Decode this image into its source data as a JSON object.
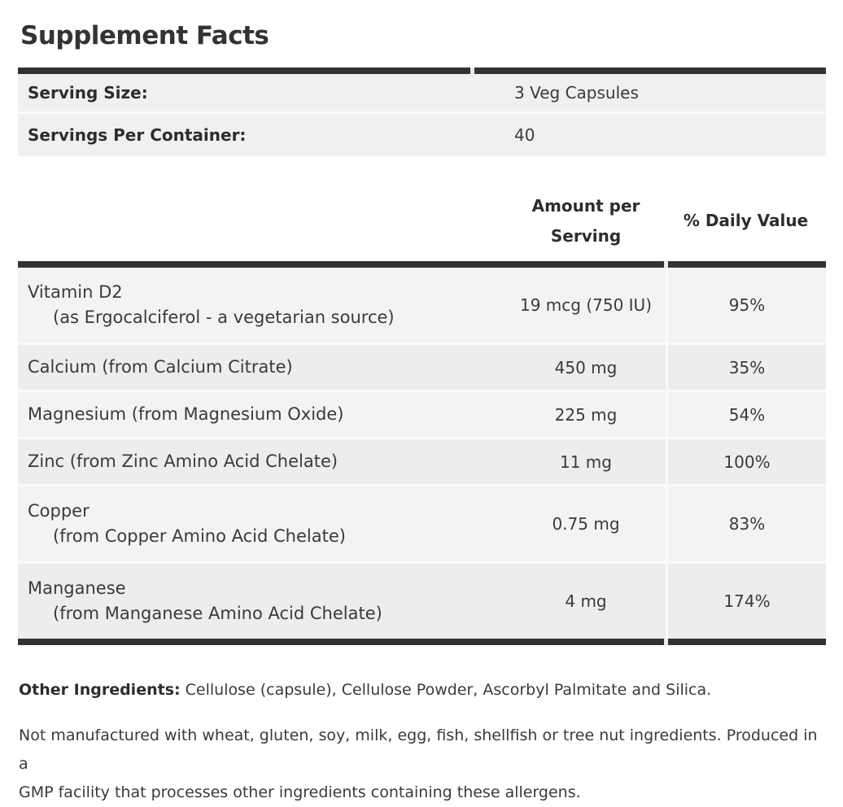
{
  "title": "Supplement Facts",
  "serving": {
    "rows": [
      {
        "label": "Serving Size:",
        "value": "3 Veg Capsules"
      },
      {
        "label": "Servings Per Container:",
        "value": "40"
      }
    ]
  },
  "table": {
    "headers": {
      "amount_line1": "Amount per",
      "amount_line2": "Serving",
      "daily_value": "% Daily Value"
    },
    "rows": [
      {
        "name": "Vitamin D2",
        "detail": "(as Ergocalciferol - a vegetarian source)",
        "amount": "19 mcg (750 IU)",
        "daily_value": "95%"
      },
      {
        "name": "Calcium (from Calcium Citrate)",
        "amount": "450 mg",
        "daily_value": "35%"
      },
      {
        "name": "Magnesium (from Magnesium Oxide)",
        "amount": "225 mg",
        "daily_value": "54%"
      },
      {
        "name": "Zinc (from Zinc Amino Acid Chelate)",
        "amount": "11 mg",
        "daily_value": "100%"
      },
      {
        "name": "Copper",
        "detail": "(from Copper Amino Acid Chelate)",
        "amount": "0.75 mg",
        "daily_value": "83%"
      },
      {
        "name": "Manganese",
        "detail": "(from Manganese Amino Acid Chelate)",
        "amount": "4 mg",
        "daily_value": "174%"
      }
    ]
  },
  "footnotes": {
    "other_ingredients_label": "Other Ingredients:",
    "other_ingredients_text": " Cellulose (capsule), Cellulose Powder, Ascorbyl Palmitate and Silica.",
    "allergen_line1": "Not manufactured with wheat, gluten, soy, milk, egg, fish, shellfish or tree nut ingredients. Produced in a",
    "allergen_line2": "GMP facility that processes other ingredients containing these allergens."
  },
  "colors": {
    "rule": "#323232",
    "row_shade_light": "#f3f3f3",
    "row_shade_dark": "#ededed",
    "serving_row": "#f0f0f0",
    "text": "#3a3a3a",
    "bold_text": "#2d2d2d"
  }
}
